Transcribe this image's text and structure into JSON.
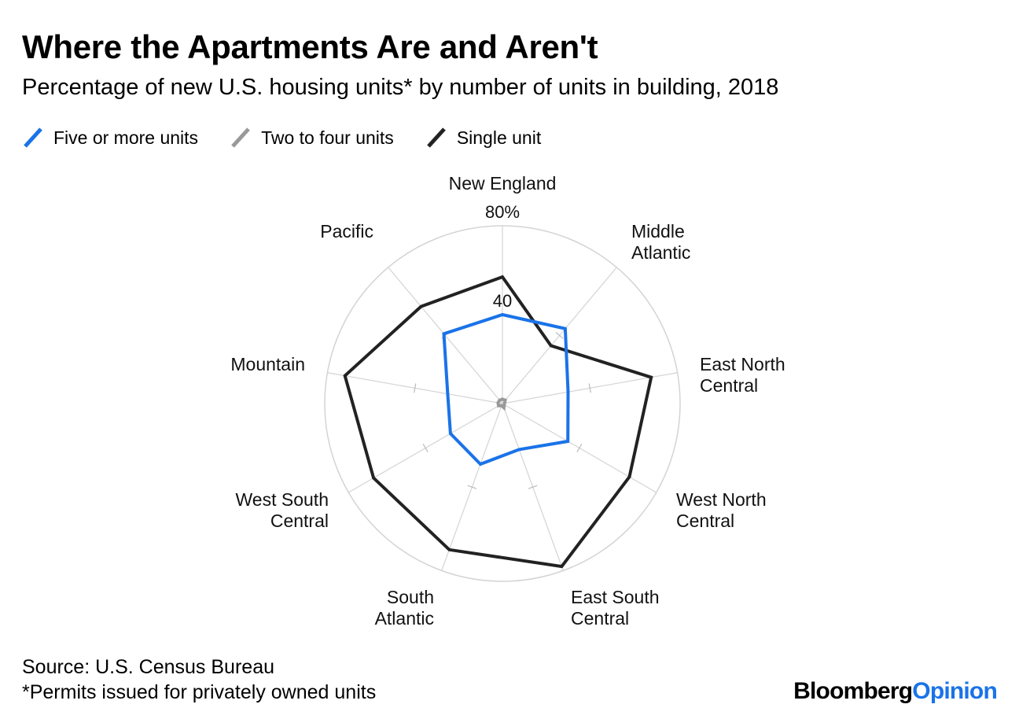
{
  "chart_data": {
    "type": "radar",
    "title": "Where the Apartments Are and Aren't",
    "subtitle": "Percentage of new U.S. housing units* by number of units in building, 2018",
    "categories": [
      [
        "New England"
      ],
      [
        "Middle",
        "Atlantic"
      ],
      [
        "East North",
        "Central"
      ],
      [
        "West North",
        "Central"
      ],
      [
        "East South",
        "Central"
      ],
      [
        "South",
        "Atlantic"
      ],
      [
        "West South",
        "Central"
      ],
      [
        "Mountain"
      ],
      [
        "Pacific"
      ]
    ],
    "radial_max": 80,
    "radial_ticks": [
      {
        "value": 80,
        "label": "80%"
      },
      {
        "value": 40,
        "label": "40"
      }
    ],
    "series": [
      {
        "name": "Five or more units",
        "color": "#1a73e8",
        "values": [
          40,
          44,
          30,
          34,
          22,
          29,
          27,
          25,
          41
        ]
      },
      {
        "name": "Two to four units",
        "color": "#999999",
        "values": [
          2,
          2,
          1,
          1,
          2,
          1,
          2,
          2,
          2
        ]
      },
      {
        "name": "Single unit",
        "color": "#222222",
        "values": [
          57,
          34,
          68,
          66,
          78,
          70,
          67,
          72,
          57
        ]
      }
    ]
  },
  "footer": {
    "source": "Source: U.S. Census Bureau",
    "note": "*Permits issued for privately owned units"
  },
  "logo": {
    "brand": "Bloomberg",
    "suffix": "Opinion"
  }
}
